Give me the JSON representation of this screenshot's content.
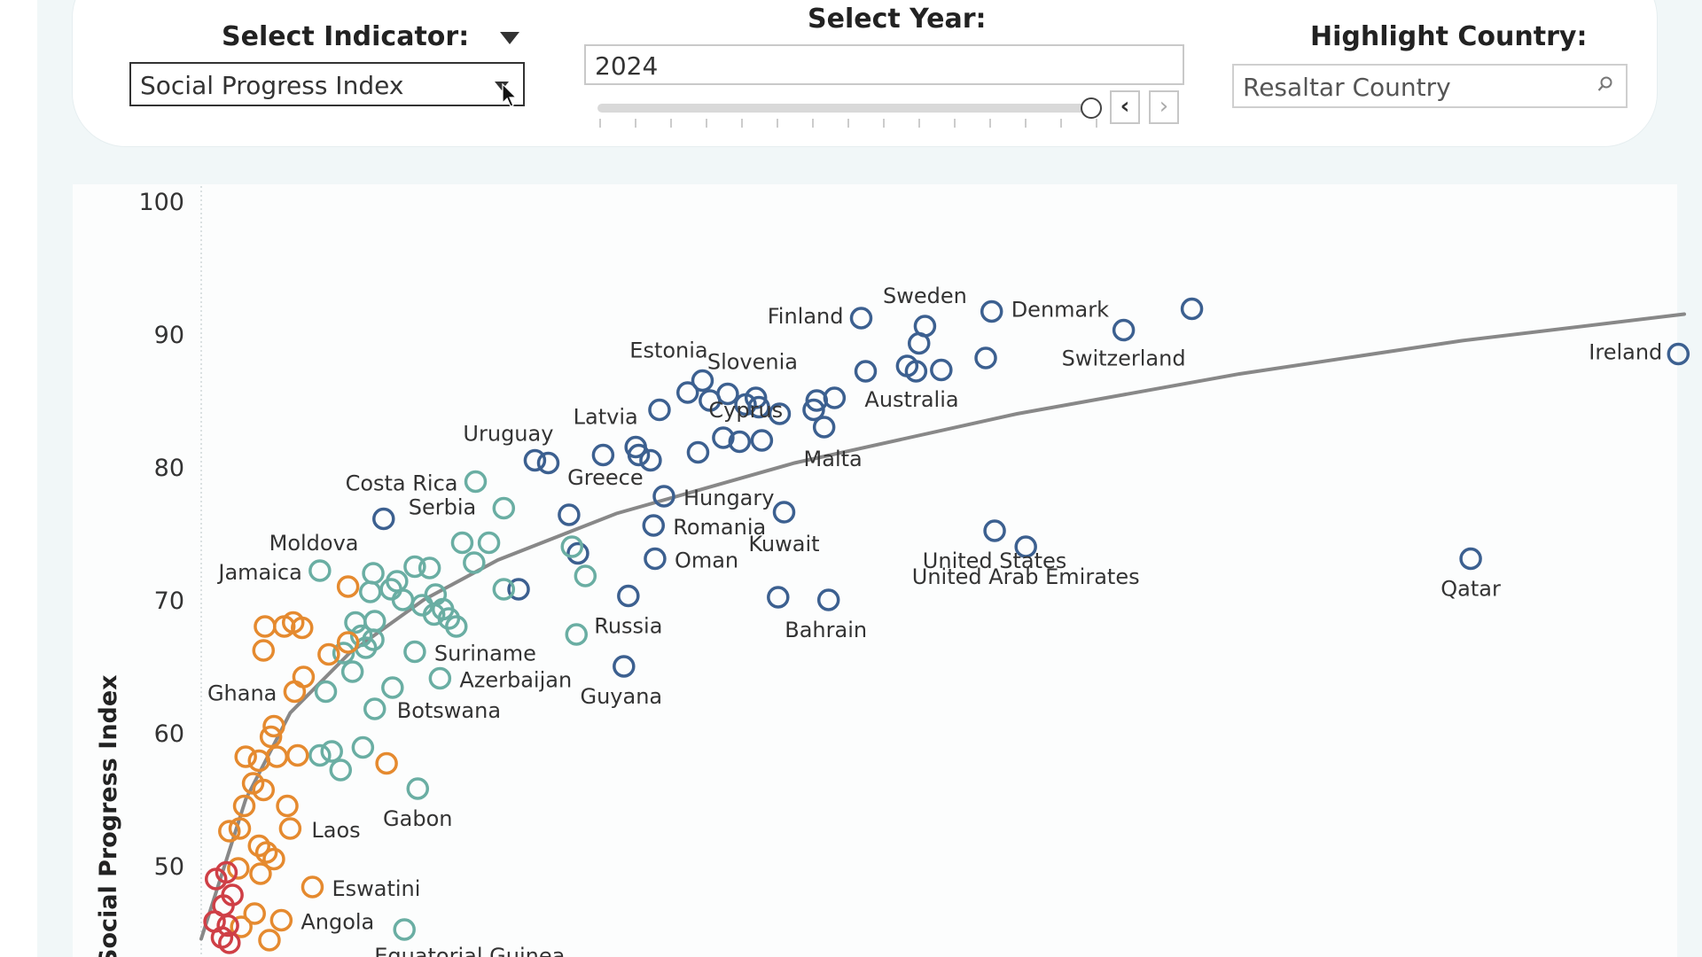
{
  "controls": {
    "indicator_title": "Select Indicator:",
    "indicator_value": "Social Progress Index",
    "year_title": "Select Year:",
    "year_value": "2024",
    "year_prev_icon": "chevron-left-icon",
    "year_next_icon": "chevron-right-icon",
    "highlight_title": "Highlight Country:",
    "highlight_placeholder": "Resaltar Country",
    "search_icon": "search-icon"
  },
  "colors": {
    "high": "#3c6090",
    "upper_mid": "#6aaea3",
    "lower_mid": "#e58a2f",
    "low": "#cf3f46",
    "trend": "#888888"
  },
  "chart_data": {
    "type": "scatter",
    "ylabel": "Social Progress Index",
    "ylim": [
      44,
      100
    ],
    "yticks": [
      50,
      60,
      70,
      80,
      90,
      100
    ],
    "xlim": [
      0,
      100
    ],
    "trendline": [
      [
        0,
        44.5
      ],
      [
        3,
        55
      ],
      [
        6,
        61.5
      ],
      [
        10,
        66
      ],
      [
        15,
        70
      ],
      [
        20,
        73
      ],
      [
        28,
        76.5
      ],
      [
        40,
        80.3
      ],
      [
        55,
        84
      ],
      [
        70,
        87
      ],
      [
        85,
        89.5
      ],
      [
        100,
        91.5
      ]
    ],
    "points": [
      {
        "x": 44.5,
        "y": 91.2,
        "c": "high",
        "label": "Finland"
      },
      {
        "x": 48.8,
        "y": 90.6,
        "c": "high",
        "label": "Sweden"
      },
      {
        "x": 53.3,
        "y": 91.7,
        "c": "high",
        "label": "Denmark"
      },
      {
        "x": 62.2,
        "y": 90.3,
        "c": "high",
        "label": "Switzerland"
      },
      {
        "x": 66.8,
        "y": 91.9,
        "c": "high"
      },
      {
        "x": 99.6,
        "y": 88.5,
        "c": "high",
        "label": "Ireland"
      },
      {
        "x": 48.4,
        "y": 89.3,
        "c": "high"
      },
      {
        "x": 47.6,
        "y": 87.6,
        "c": "high"
      },
      {
        "x": 48.2,
        "y": 87.2,
        "c": "high"
      },
      {
        "x": 49.9,
        "y": 87.3,
        "c": "high"
      },
      {
        "x": 52.9,
        "y": 88.2,
        "c": "high"
      },
      {
        "x": 44.8,
        "y": 87.2,
        "c": "high",
        "label": "Australia"
      },
      {
        "x": 33.8,
        "y": 86.5,
        "c": "high",
        "label": "Estonia"
      },
      {
        "x": 32.8,
        "y": 85.6,
        "c": "high"
      },
      {
        "x": 34.3,
        "y": 85.0,
        "c": "high"
      },
      {
        "x": 35.5,
        "y": 85.5,
        "c": "high",
        "label": "Slovenia"
      },
      {
        "x": 36.7,
        "y": 84.7,
        "c": "high"
      },
      {
        "x": 37.4,
        "y": 85.2,
        "c": "high"
      },
      {
        "x": 37.6,
        "y": 84.5,
        "c": "high"
      },
      {
        "x": 39.0,
        "y": 84.0,
        "c": "high"
      },
      {
        "x": 41.5,
        "y": 85.0,
        "c": "high"
      },
      {
        "x": 42.7,
        "y": 85.2,
        "c": "high"
      },
      {
        "x": 41.3,
        "y": 84.3,
        "c": "high"
      },
      {
        "x": 42.0,
        "y": 83.0,
        "c": "high",
        "label": "Malta"
      },
      {
        "x": 30.9,
        "y": 84.3,
        "c": "high"
      },
      {
        "x": 29.3,
        "y": 81.5,
        "c": "high",
        "label": "Latvia"
      },
      {
        "x": 29.5,
        "y": 80.9,
        "c": "high"
      },
      {
        "x": 30.3,
        "y": 80.5,
        "c": "high"
      },
      {
        "x": 27.1,
        "y": 80.9,
        "c": "high"
      },
      {
        "x": 33.5,
        "y": 81.1,
        "c": "high"
      },
      {
        "x": 35.2,
        "y": 82.2,
        "c": "high"
      },
      {
        "x": 36.3,
        "y": 81.9,
        "c": "high"
      },
      {
        "x": 37.8,
        "y": 82.0,
        "c": "high",
        "label": "Cyprus"
      },
      {
        "x": 22.5,
        "y": 80.5,
        "c": "high",
        "label": "Uruguay"
      },
      {
        "x": 23.4,
        "y": 80.3,
        "c": "high"
      },
      {
        "x": 31.2,
        "y": 77.8,
        "c": "high",
        "label": "Hungary"
      },
      {
        "x": 24.8,
        "y": 76.4,
        "c": "high",
        "label": "Greece"
      },
      {
        "x": 30.5,
        "y": 75.6,
        "c": "high",
        "label": "Romania"
      },
      {
        "x": 39.3,
        "y": 76.6,
        "c": "high",
        "label": "Kuwait"
      },
      {
        "x": 53.5,
        "y": 75.2,
        "c": "high",
        "label": "United States"
      },
      {
        "x": 12.3,
        "y": 76.1,
        "c": "high",
        "label": "Serbia"
      },
      {
        "x": 55.6,
        "y": 74.0,
        "c": "high",
        "label": "United Arab Emirates"
      },
      {
        "x": 85.6,
        "y": 73.1,
        "c": "high",
        "label": "Qatar"
      },
      {
        "x": 25.4,
        "y": 73.5,
        "c": "high"
      },
      {
        "x": 30.6,
        "y": 73.1,
        "c": "high",
        "label": "Oman"
      },
      {
        "x": 21.4,
        "y": 70.8,
        "c": "high"
      },
      {
        "x": 28.8,
        "y": 70.3,
        "c": "high",
        "label": "Russia"
      },
      {
        "x": 38.9,
        "y": 70.2,
        "c": "high"
      },
      {
        "x": 42.3,
        "y": 70.0,
        "c": "high",
        "label": "Bahrain"
      },
      {
        "x": 28.5,
        "y": 65.0,
        "c": "high",
        "label": "Guyana"
      },
      {
        "x": 18.5,
        "y": 78.9,
        "c": "upper_mid",
        "label": "Costa Rica"
      },
      {
        "x": 20.4,
        "y": 76.9,
        "c": "upper_mid"
      },
      {
        "x": 17.6,
        "y": 74.3,
        "c": "upper_mid"
      },
      {
        "x": 19.4,
        "y": 74.3,
        "c": "upper_mid"
      },
      {
        "x": 18.4,
        "y": 72.8,
        "c": "upper_mid"
      },
      {
        "x": 25.0,
        "y": 74.0,
        "c": "upper_mid"
      },
      {
        "x": 25.9,
        "y": 71.8,
        "c": "upper_mid"
      },
      {
        "x": 8.0,
        "y": 72.2,
        "c": "upper_mid",
        "label": "Jamaica"
      },
      {
        "x": 11.6,
        "y": 72.0,
        "c": "upper_mid",
        "label": "Moldova"
      },
      {
        "x": 13.2,
        "y": 71.4,
        "c": "upper_mid"
      },
      {
        "x": 14.4,
        "y": 72.5,
        "c": "upper_mid"
      },
      {
        "x": 15.4,
        "y": 72.4,
        "c": "upper_mid"
      },
      {
        "x": 12.8,
        "y": 70.8,
        "c": "upper_mid"
      },
      {
        "x": 11.4,
        "y": 70.6,
        "c": "upper_mid"
      },
      {
        "x": 13.6,
        "y": 70.0,
        "c": "upper_mid"
      },
      {
        "x": 14.9,
        "y": 69.6,
        "c": "upper_mid"
      },
      {
        "x": 15.8,
        "y": 70.4,
        "c": "upper_mid"
      },
      {
        "x": 16.3,
        "y": 69.3,
        "c": "upper_mid"
      },
      {
        "x": 15.7,
        "y": 68.9,
        "c": "upper_mid"
      },
      {
        "x": 16.7,
        "y": 68.6,
        "c": "upper_mid"
      },
      {
        "x": 17.2,
        "y": 68.0,
        "c": "upper_mid"
      },
      {
        "x": 20.4,
        "y": 70.8,
        "c": "upper_mid"
      },
      {
        "x": 10.4,
        "y": 68.3,
        "c": "upper_mid"
      },
      {
        "x": 11.7,
        "y": 68.4,
        "c": "upper_mid"
      },
      {
        "x": 10.8,
        "y": 67.3,
        "c": "upper_mid"
      },
      {
        "x": 11.6,
        "y": 67.0,
        "c": "upper_mid"
      },
      {
        "x": 11.1,
        "y": 66.4,
        "c": "upper_mid"
      },
      {
        "x": 14.4,
        "y": 66.1,
        "c": "upper_mid",
        "label": "Suriname"
      },
      {
        "x": 25.3,
        "y": 67.4,
        "c": "upper_mid"
      },
      {
        "x": 9.6,
        "y": 66.0,
        "c": "upper_mid"
      },
      {
        "x": 10.2,
        "y": 64.6,
        "c": "upper_mid"
      },
      {
        "x": 16.1,
        "y": 64.1,
        "c": "upper_mid",
        "label": "Azerbaijan"
      },
      {
        "x": 12.9,
        "y": 63.4,
        "c": "upper_mid"
      },
      {
        "x": 8.4,
        "y": 63.1,
        "c": "upper_mid"
      },
      {
        "x": 11.7,
        "y": 61.8,
        "c": "upper_mid",
        "label": "Botswana"
      },
      {
        "x": 8.0,
        "y": 58.3,
        "c": "upper_mid"
      },
      {
        "x": 8.8,
        "y": 58.6,
        "c": "upper_mid"
      },
      {
        "x": 10.9,
        "y": 58.9,
        "c": "upper_mid"
      },
      {
        "x": 9.4,
        "y": 57.2,
        "c": "upper_mid"
      },
      {
        "x": 14.6,
        "y": 55.8,
        "c": "upper_mid",
        "label": "Gabon"
      },
      {
        "x": 13.7,
        "y": 45.2,
        "c": "upper_mid",
        "label": "Equatorial Guinea"
      },
      {
        "x": 9.9,
        "y": 71.0,
        "c": "lower_mid"
      },
      {
        "x": 4.3,
        "y": 68.0,
        "c": "lower_mid"
      },
      {
        "x": 5.6,
        "y": 68.0,
        "c": "lower_mid"
      },
      {
        "x": 6.2,
        "y": 68.3,
        "c": "lower_mid"
      },
      {
        "x": 6.8,
        "y": 67.9,
        "c": "lower_mid"
      },
      {
        "x": 4.2,
        "y": 66.2,
        "c": "lower_mid"
      },
      {
        "x": 8.6,
        "y": 65.9,
        "c": "lower_mid"
      },
      {
        "x": 9.9,
        "y": 66.8,
        "c": "lower_mid"
      },
      {
        "x": 6.9,
        "y": 64.2,
        "c": "lower_mid"
      },
      {
        "x": 6.3,
        "y": 63.1,
        "c": "lower_mid",
        "label": "Ghana"
      },
      {
        "x": 4.9,
        "y": 60.5,
        "c": "lower_mid"
      },
      {
        "x": 4.7,
        "y": 59.7,
        "c": "lower_mid"
      },
      {
        "x": 3.0,
        "y": 58.2,
        "c": "lower_mid"
      },
      {
        "x": 3.9,
        "y": 57.9,
        "c": "lower_mid"
      },
      {
        "x": 5.1,
        "y": 58.2,
        "c": "lower_mid"
      },
      {
        "x": 6.5,
        "y": 58.3,
        "c": "lower_mid"
      },
      {
        "x": 12.5,
        "y": 57.7,
        "c": "lower_mid"
      },
      {
        "x": 3.5,
        "y": 56.2,
        "c": "lower_mid"
      },
      {
        "x": 4.2,
        "y": 55.7,
        "c": "lower_mid"
      },
      {
        "x": 2.9,
        "y": 54.5,
        "c": "lower_mid"
      },
      {
        "x": 5.8,
        "y": 54.5,
        "c": "lower_mid"
      },
      {
        "x": 1.9,
        "y": 52.6,
        "c": "lower_mid"
      },
      {
        "x": 2.6,
        "y": 52.8,
        "c": "lower_mid"
      },
      {
        "x": 6.0,
        "y": 52.8,
        "c": "lower_mid",
        "label": "Laos"
      },
      {
        "x": 3.9,
        "y": 51.5,
        "c": "lower_mid"
      },
      {
        "x": 4.4,
        "y": 51.0,
        "c": "lower_mid"
      },
      {
        "x": 4.9,
        "y": 50.5,
        "c": "lower_mid"
      },
      {
        "x": 4.0,
        "y": 49.4,
        "c": "lower_mid"
      },
      {
        "x": 2.5,
        "y": 49.8,
        "c": "lower_mid"
      },
      {
        "x": 7.5,
        "y": 48.4,
        "c": "lower_mid",
        "label": "Eswatini"
      },
      {
        "x": 3.6,
        "y": 46.4,
        "c": "lower_mid"
      },
      {
        "x": 5.4,
        "y": 45.9,
        "c": "lower_mid",
        "label": "Angola"
      },
      {
        "x": 2.7,
        "y": 45.4,
        "c": "lower_mid"
      },
      {
        "x": 4.6,
        "y": 44.4,
        "c": "lower_mid"
      },
      {
        "x": 1.0,
        "y": 49.0,
        "c": "low"
      },
      {
        "x": 1.7,
        "y": 49.5,
        "c": "low"
      },
      {
        "x": 2.1,
        "y": 47.8,
        "c": "low"
      },
      {
        "x": 1.5,
        "y": 47.0,
        "c": "low"
      },
      {
        "x": 0.9,
        "y": 45.8,
        "c": "low"
      },
      {
        "x": 1.8,
        "y": 45.5,
        "c": "low"
      },
      {
        "x": 1.4,
        "y": 44.6,
        "c": "low"
      },
      {
        "x": 1.9,
        "y": 44.2,
        "c": "low"
      }
    ]
  }
}
